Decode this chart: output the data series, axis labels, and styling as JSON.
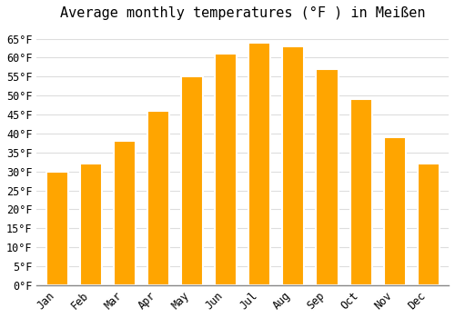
{
  "title": "Average monthly temperatures (°F ) in Meißen",
  "months": [
    "Jan",
    "Feb",
    "Mar",
    "Apr",
    "May",
    "Jun",
    "Jul",
    "Aug",
    "Sep",
    "Oct",
    "Nov",
    "Dec"
  ],
  "values": [
    30,
    32,
    38,
    46,
    55,
    61,
    64,
    63,
    57,
    49,
    39,
    32
  ],
  "bar_color": "#FFA500",
  "bar_edge_color": "#E89000",
  "background_color": "#FFFFFF",
  "plot_bg_color": "#FFFFFF",
  "grid_color": "#DDDDDD",
  "ylim": [
    0,
    68
  ],
  "yticks": [
    0,
    5,
    10,
    15,
    20,
    25,
    30,
    35,
    40,
    45,
    50,
    55,
    60,
    65
  ],
  "title_fontsize": 11,
  "tick_fontsize": 8.5,
  "bar_width": 0.65
}
